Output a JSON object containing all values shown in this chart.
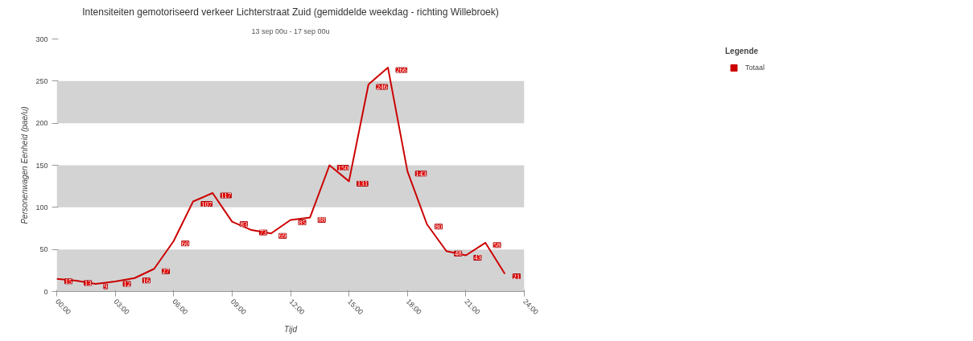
{
  "chart_data": {
    "type": "line",
    "title": "Intensiteiten gemotoriseerd verkeer Lichterstraat Zuid (gemiddelde weekdag - richting Willebroek)",
    "subtitle": "13 sep 00u - 17 sep 00u",
    "xlabel": "Tijd",
    "ylabel": "Personenwagen Eenheid (pae/u)",
    "legend_title": "Legende",
    "x": [
      0,
      1,
      2,
      3,
      4,
      5,
      6,
      7,
      8,
      9,
      10,
      11,
      12,
      13,
      14,
      15,
      16,
      17,
      18,
      19,
      20,
      21,
      22,
      23
    ],
    "series": [
      {
        "name": "Totaal",
        "color": "#cc0000",
        "values": [
          15,
          13,
          9,
          12,
          16,
          27,
          60,
          107,
          117,
          83,
          73,
          69,
          85,
          88,
          150,
          131,
          246,
          266,
          143,
          80,
          48,
          43,
          58,
          21
        ]
      }
    ],
    "xlim": [
      0,
      24
    ],
    "xticks": [
      {
        "value": 0,
        "label": "00:00"
      },
      {
        "value": 3,
        "label": "03:00"
      },
      {
        "value": 6,
        "label": "06:00"
      },
      {
        "value": 9,
        "label": "09:00"
      },
      {
        "value": 12,
        "label": "12:00"
      },
      {
        "value": 15,
        "label": "15:00"
      },
      {
        "value": 18,
        "label": "18:00"
      },
      {
        "value": 21,
        "label": "21:00"
      },
      {
        "value": 24,
        "label": "24:00"
      }
    ],
    "ylim": [
      0,
      300
    ],
    "yticks": [
      0,
      50,
      100,
      150,
      200,
      250,
      300
    ],
    "bands": [
      {
        "axis": "y",
        "from": 0,
        "to": 50,
        "color": "#d3d3d3"
      },
      {
        "axis": "y",
        "from": 100,
        "to": 150,
        "color": "#d3d3d3"
      },
      {
        "axis": "y",
        "from": 200,
        "to": 250,
        "color": "#d3d3d3"
      }
    ],
    "data_labels": true,
    "legend": "top right",
    "grid": false,
    "marker": "none",
    "line_style": "solid"
  }
}
